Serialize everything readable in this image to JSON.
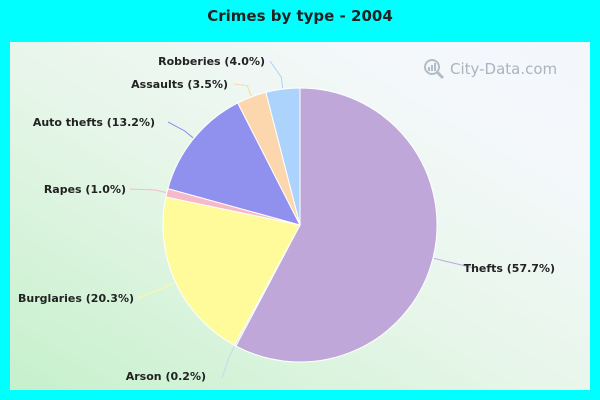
{
  "chart_data": {
    "type": "pie",
    "title": "Crimes by type - 2004",
    "slices": [
      {
        "label": "Thefts (57.7%)",
        "value": 57.7,
        "color": "#bfa8d9"
      },
      {
        "label": "Arson (0.2%)",
        "value": 0.2,
        "color": "#c5d9e8"
      },
      {
        "label": "Burglaries (20.3%)",
        "value": 20.3,
        "color": "#fffa9a"
      },
      {
        "label": "Rapes (1.0%)",
        "value": 1.0,
        "color": "#f7b8c8"
      },
      {
        "label": "Auto thefts (13.2%)",
        "value": 13.2,
        "color": "#9090ee"
      },
      {
        "label": "Assaults (3.5%)",
        "value": 3.5,
        "color": "#fcd7ae"
      },
      {
        "label": "Robberies (4.0%)",
        "value": 4.0,
        "color": "#acd3fb"
      }
    ]
  },
  "watermark": {
    "text": "City-Data.com",
    "icon": "magnifier-chart-icon"
  }
}
